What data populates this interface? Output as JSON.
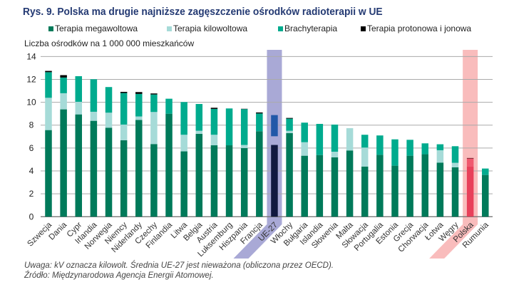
{
  "title": "Rys. 9. Polska ma drugie najniższe zagęszczenie ośrodków radioterapii w UE",
  "notes": [
    "Uwaga: kV oznacza kilowolt. Średnia UE-27 jest nieważona (obliczona przez OECD).",
    "Źródło: Międzynarodowa Agencja Energii Atomowej."
  ],
  "chart_data": {
    "type": "bar",
    "stacked": true,
    "title": "Rys. 9. Polska ma drugie najniższe zagęszczenie ośrodków radioterapii w UE",
    "ylabel": "Liczba ośrodków na 1 000 000 mieszkańców",
    "ylim": [
      0,
      14
    ],
    "yticks": [
      "0",
      "2",
      "4",
      "6",
      "8",
      "10",
      "12",
      "14"
    ],
    "grid": true,
    "legend": "top",
    "categories": [
      "Szwecja",
      "Dania",
      "Cypr",
      "Irlandia",
      "Norwegia",
      "Niemcy",
      "Niderlandy",
      "Czechy",
      "Finlandia",
      "Litwa",
      "Belgia",
      "Austria",
      "Luksemburg",
      "Hiszpania",
      "Francja",
      "UE-27",
      "Włochy",
      "Bułgaria",
      "Islandia",
      "Słowenia",
      "Malta",
      "Słowacja",
      "Portugalia",
      "Estonia",
      "Grecja",
      "Chorwacja",
      "Łotwa",
      "Węgry",
      "Polska",
      "Rumunia"
    ],
    "highlighted": [
      "UE-27",
      "Polska"
    ],
    "series": [
      {
        "name": "Terapia megawoltowa",
        "color": "#007a5a",
        "values": [
          7.57,
          9.38,
          8.94,
          8.38,
          7.78,
          6.68,
          8.46,
          6.35,
          9.0,
          5.71,
          7.24,
          6.24,
          6.24,
          6.0,
          7.47,
          6.27,
          7.3,
          5.33,
          5.39,
          5.19,
          5.79,
          4.38,
          5.41,
          4.46,
          5.33,
          5.46,
          4.73,
          4.32,
          4.38,
          3.65
        ]
      },
      {
        "name": "Terapia kilowoltowa",
        "color": "#a6dbd8",
        "values": [
          2.82,
          1.41,
          1.1,
          0.79,
          1.31,
          1.37,
          0.3,
          2.8,
          0,
          1.45,
          0.27,
          0.92,
          0,
          0.27,
          0,
          0.76,
          0.21,
          1.18,
          0,
          0.49,
          1.95,
          1.66,
          0,
          0,
          0,
          0,
          1.08,
          0.39,
          0,
          0
        ]
      },
      {
        "name": "Brachyterapia",
        "color": "#00ab8e",
        "values": [
          2.24,
          1.37,
          2.24,
          2.84,
          2.24,
          2.76,
          1.97,
          1.53,
          1.31,
          2.86,
          2.34,
          2.26,
          3.22,
          3.13,
          1.55,
          1.85,
          1.06,
          1.71,
          2.72,
          2.37,
          0,
          1.12,
          1.69,
          2.3,
          1.39,
          0.95,
          0.52,
          1.45,
          0.7,
          0.56
        ]
      },
      {
        "name": "Terapia protonowa i jonowa",
        "color": "#000000",
        "values": [
          0.11,
          0.21,
          0,
          0,
          0,
          0.1,
          0.16,
          0.09,
          0,
          0,
          0,
          0.1,
          0,
          0.03,
          0.09,
          0,
          0.06,
          0,
          0,
          0,
          0,
          0,
          0,
          0,
          0,
          0,
          0,
          0,
          0.05,
          0
        ]
      }
    ]
  }
}
